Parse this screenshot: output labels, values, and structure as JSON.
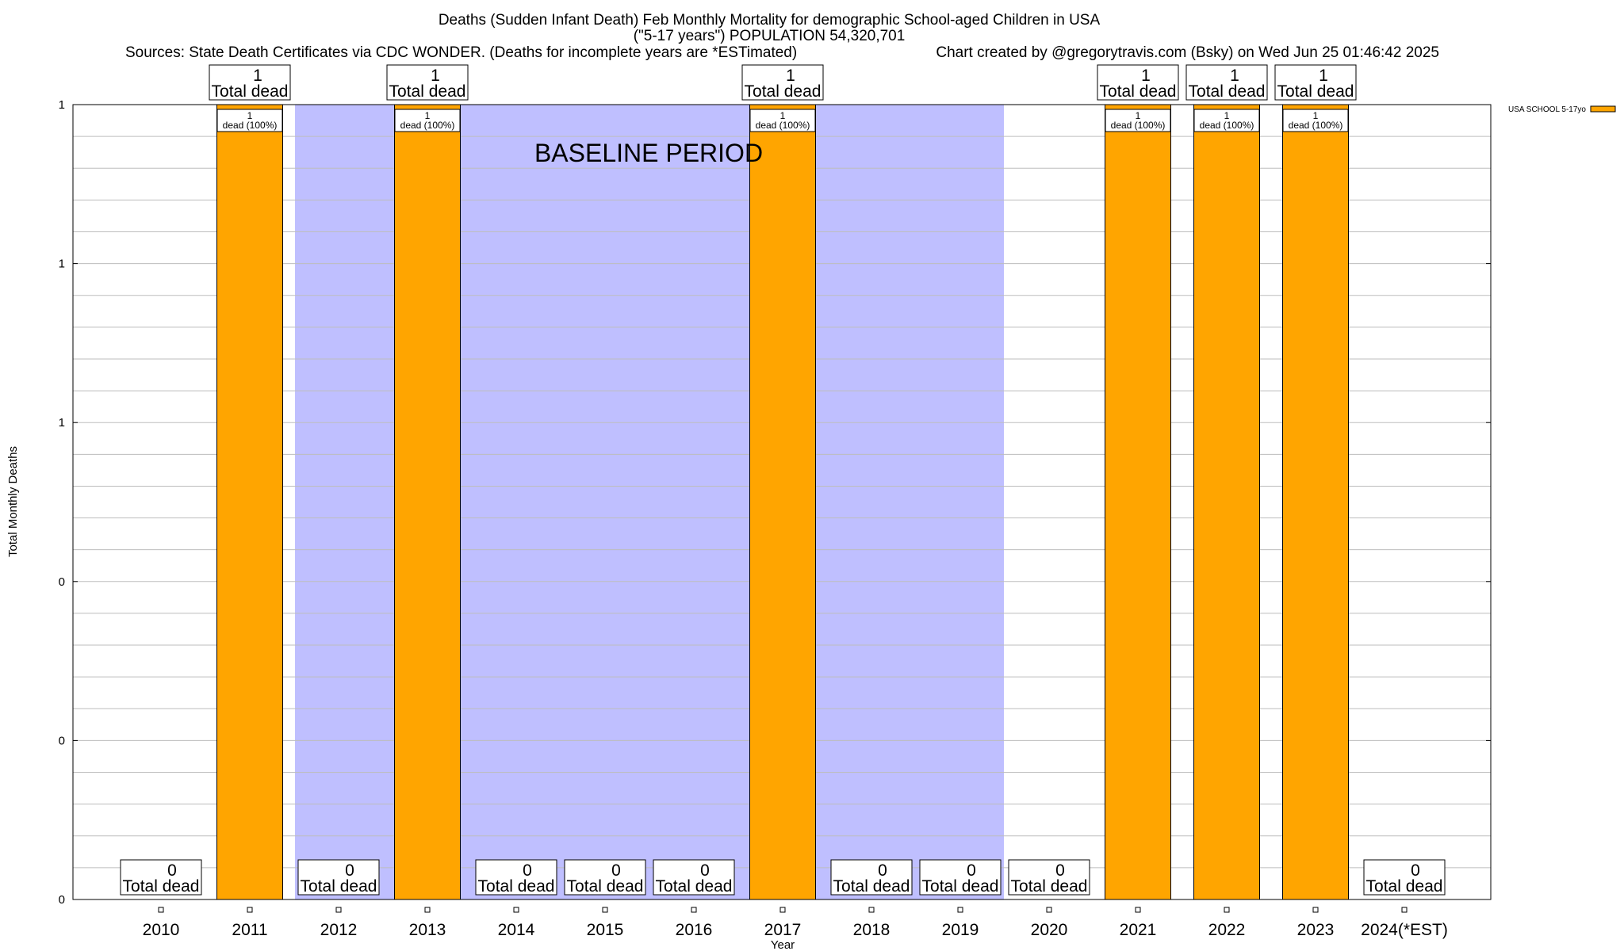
{
  "title": {
    "line1": "Deaths (Sudden Infant Death) Feb Monthly Mortality for demographic School-aged Children in USA",
    "line2": "(\"5-17 years\") POPULATION 54,320,701",
    "line3_left": "Sources: State Death Certificates via CDC WONDER. (Deaths for incomplete years are *ESTimated)",
    "line3_right": "Chart created by @gregorytravis.com (Bsky) on Wed Jun 25 01:46:42 2025"
  },
  "chart_data": {
    "type": "bar",
    "xlabel": "Year",
    "ylabel": "Total Monthly Deaths",
    "ylim": [
      0,
      1
    ],
    "y_tick_labels": [
      "0",
      "0",
      "0",
      "1",
      "1",
      "1"
    ],
    "categories": [
      "2010",
      "2011",
      "2012",
      "2013",
      "2014",
      "2015",
      "2016",
      "2017",
      "2018",
      "2019",
      "2020",
      "2021",
      "2022",
      "2023",
      "2024(*EST)"
    ],
    "series": [
      {
        "name": "USA SCHOOL 5-17yo",
        "color": "#FFA500",
        "values": [
          0,
          1,
          0,
          1,
          0,
          0,
          0,
          1,
          0,
          0,
          0,
          1,
          1,
          1,
          0
        ]
      }
    ],
    "total_label_word": "Total dead",
    "bar_label_text": "dead (100%)",
    "baseline_period": {
      "label": "BASELINE PERIOD",
      "from": "2012",
      "to": "2019",
      "color": "#BFBFFF"
    },
    "grid": true,
    "legend_position": "top-right"
  }
}
